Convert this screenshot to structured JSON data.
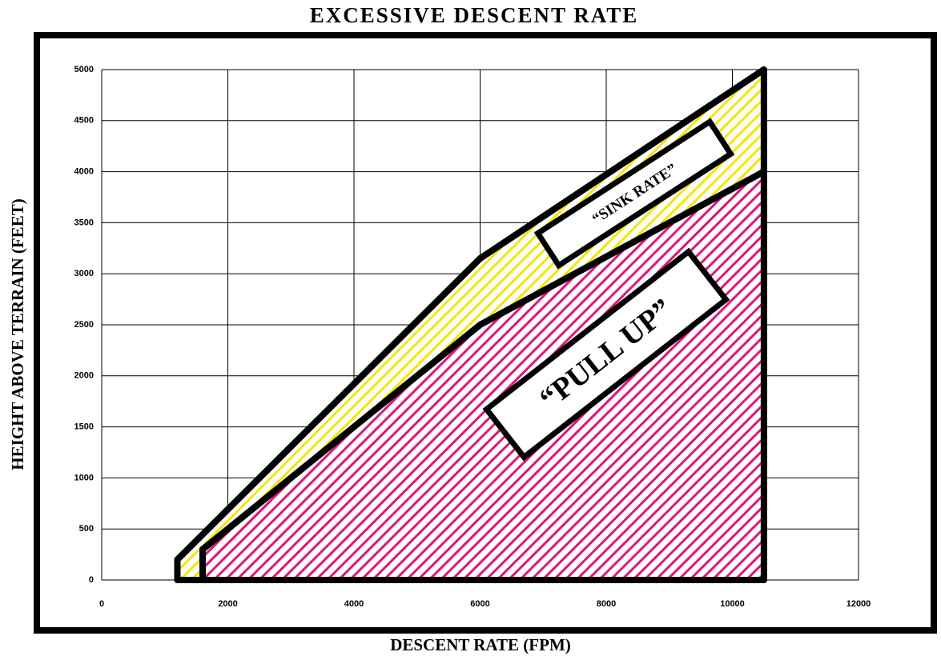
{
  "chart_data": {
    "type": "area",
    "title": "EXCESSIVE DESCENT RATE",
    "x_label": "DESCENT RATE (FPM)",
    "y_label": "HEIGHT ABOVE TERRAIN (FEET)",
    "xlim": [
      0,
      12000
    ],
    "xticks": [
      0,
      2000,
      4000,
      6000,
      8000,
      10000,
      12000
    ],
    "ylim": [
      0,
      5000
    ],
    "yticks": [
      0,
      500,
      1000,
      1500,
      2000,
      2500,
      3000,
      3500,
      4000,
      4500,
      5000
    ],
    "grid": true,
    "series": [
      {
        "color": "#f5e600",
        "x": [
          1200,
          6000,
          10500
        ],
        "values": [
          200,
          3150,
          5000
        ]
      },
      {
        "color": "#e0147a",
        "x": [
          1600,
          6000,
          10500
        ],
        "values": [
          300,
          2500,
          4000
        ]
      }
    ],
    "annotations": [
      "“SINK RATE”",
      "“PULL UP”"
    ]
  }
}
